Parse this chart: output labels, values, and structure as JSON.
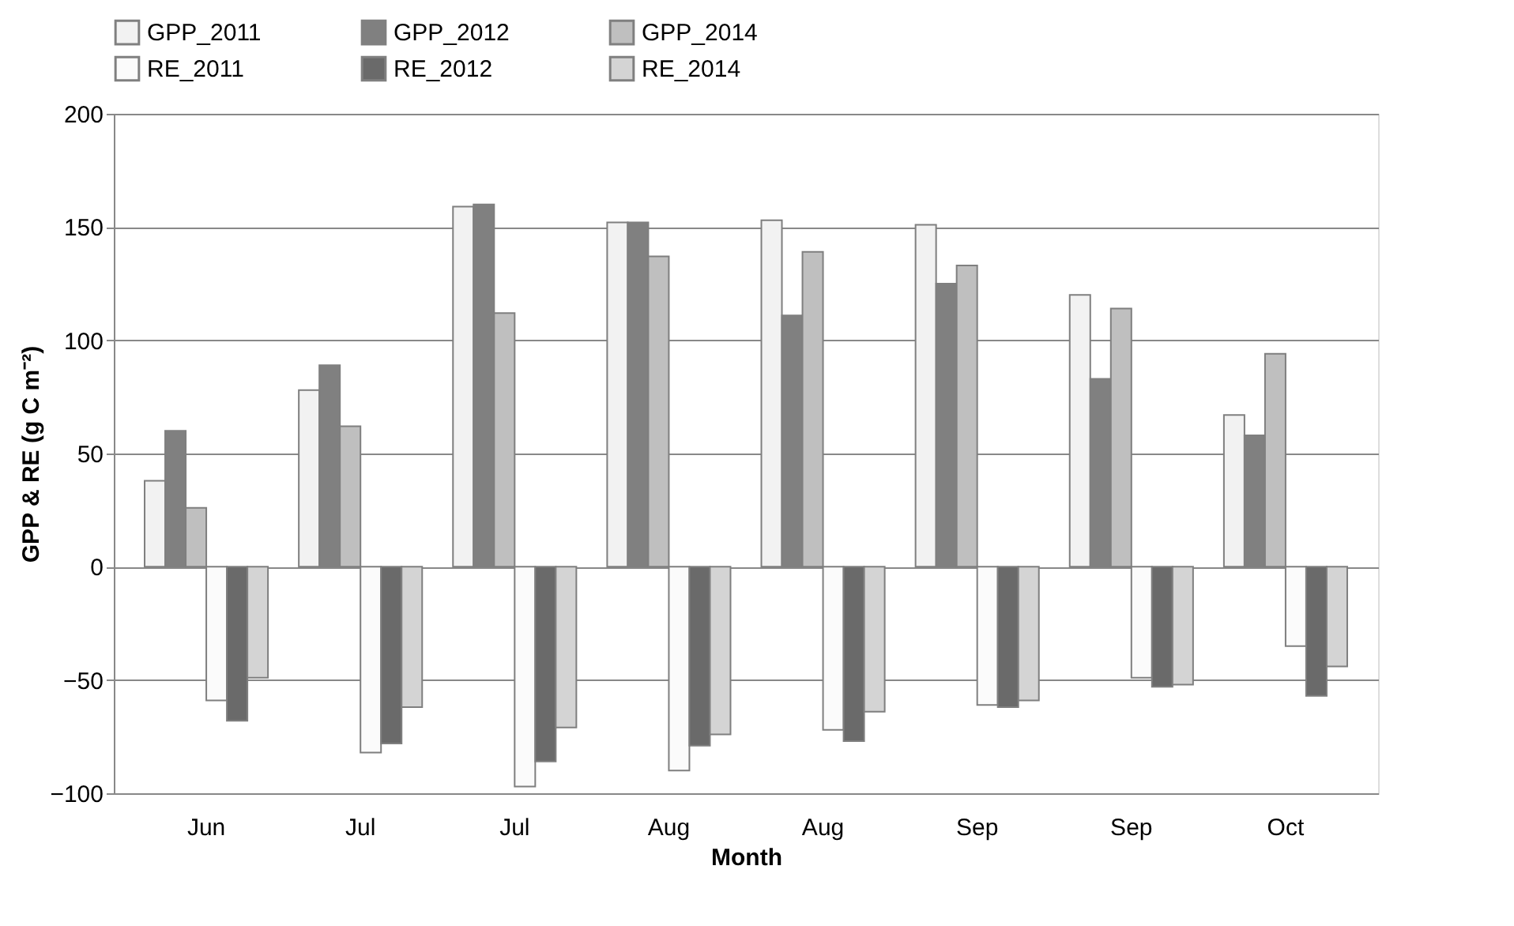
{
  "chart_data": {
    "type": "bar",
    "xlabel": "Month",
    "ylabel": "GPP & RE (g C m⁻²)",
    "categories": [
      "Jun",
      "Jul",
      "Jul",
      "Aug",
      "Aug",
      "Sep",
      "Sep",
      "Oct"
    ],
    "series": [
      {
        "name": "GPP_2011",
        "color": "#f2f2f2",
        "values": [
          38,
          78,
          159,
          152,
          153,
          151,
          120,
          67
        ]
      },
      {
        "name": "GPP_2012",
        "color": "#808080",
        "values": [
          60,
          89,
          160,
          152,
          111,
          125,
          83,
          58
        ]
      },
      {
        "name": "GPP_2014",
        "color": "#bfbfbf",
        "values": [
          26,
          62,
          112,
          137,
          139,
          133,
          114,
          94
        ]
      },
      {
        "name": "RE_2011",
        "color": "#fbfbfb",
        "values": [
          -59,
          -82,
          -97,
          -90,
          -72,
          -61,
          -49,
          -35
        ]
      },
      {
        "name": "RE_2012",
        "color": "#6a6a6a",
        "values": [
          -68,
          -78,
          -86,
          -79,
          -77,
          -62,
          -53,
          -57
        ]
      },
      {
        "name": "RE_2014",
        "color": "#d4d4d4",
        "values": [
          -49,
          -62,
          -71,
          -74,
          -64,
          -59,
          -52,
          -44
        ]
      }
    ],
    "ylim": [
      -100,
      200
    ],
    "yticks": [
      -100,
      -50,
      0,
      50,
      100,
      150,
      200
    ],
    "grid": "y",
    "legend": "top"
  }
}
